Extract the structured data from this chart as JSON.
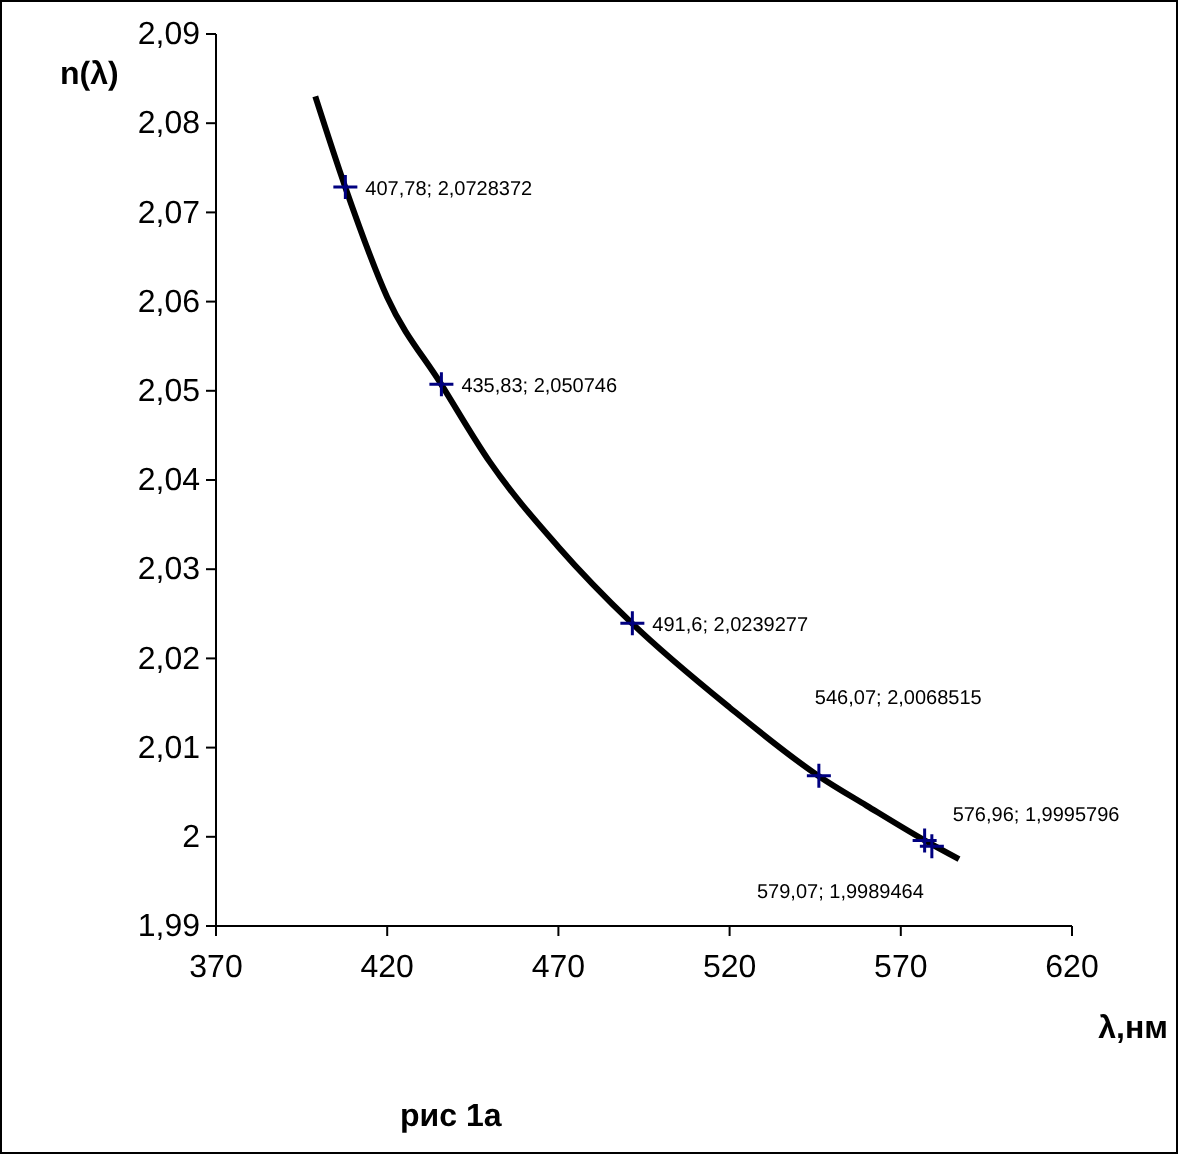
{
  "chart_data": {
    "type": "scatter",
    "ylabel": "n(λ)",
    "xlabel": "λ,нм",
    "annotations": [
      "рис 1а"
    ],
    "xlim": [
      370,
      620
    ],
    "xticks": [
      370,
      420,
      470,
      520,
      570,
      620
    ],
    "ylim": [
      1.99,
      2.09
    ],
    "yticks": [
      {
        "value": 1.99,
        "label": "1,99"
      },
      {
        "value": 2,
        "label": "2"
      },
      {
        "value": 2.01,
        "label": "2,01"
      },
      {
        "value": 2.02,
        "label": "2,02"
      },
      {
        "value": 2.03,
        "label": "2,03"
      },
      {
        "value": 2.04,
        "label": "2,04"
      },
      {
        "value": 2.05,
        "label": "2,05"
      },
      {
        "value": 2.06,
        "label": "2,06"
      },
      {
        "value": 2.07,
        "label": "2,07"
      },
      {
        "value": 2.08,
        "label": "2,08"
      },
      {
        "value": 2.09,
        "label": "2,09"
      }
    ],
    "grid": false,
    "series": [
      {
        "color": "#000080",
        "marker": "cross",
        "x": [
          407.78,
          435.83,
          491.6,
          546.07,
          576.96,
          579.07
        ],
        "values": [
          2.0728372,
          2.050746,
          2.0239277,
          2.0068515,
          1.9995796,
          1.9989464
        ],
        "value_labels": [
          "407,78; 2,0728372",
          "435,83; 2,050746",
          "491,6; 2,0239277",
          "546,07; 2,0068515",
          "576,96; 1,9995796",
          "579,07; 1,9989464"
        ]
      },
      {
        "type": "line",
        "color": "#000000",
        "marker": "none",
        "x": [
          399,
          407.78,
          420,
          435.83,
          450,
          470,
          491.6,
          520,
          546.07,
          560,
          576.96,
          587
        ],
        "values": [
          2.083,
          2.0728,
          2.0605,
          2.0507,
          2.042,
          2.0325,
          2.0239,
          2.0145,
          2.0068,
          2.0035,
          1.9996,
          1.9975
        ]
      }
    ]
  }
}
